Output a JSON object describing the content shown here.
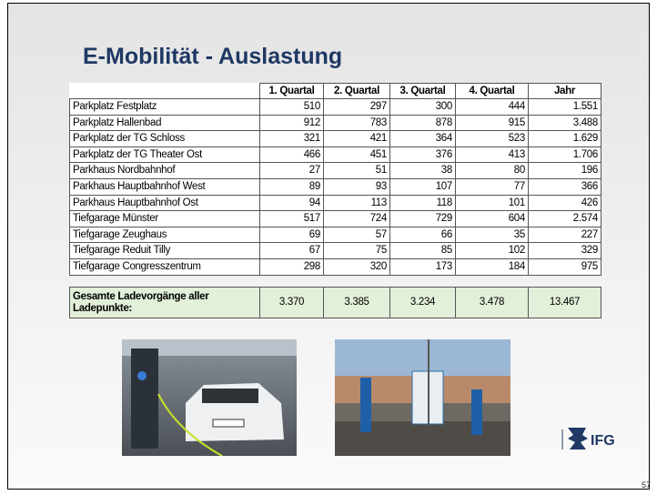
{
  "title": "E-Mobilität - Auslastung",
  "table": {
    "header": [
      "",
      "1. Quartal",
      "2. Quartal",
      "3. Quartal",
      "4. Quartal",
      "Jahr"
    ],
    "rows": [
      [
        "Parkplatz Festplatz",
        "510",
        "297",
        "300",
        "444",
        "1.551"
      ],
      [
        "Parkplatz Hallenbad",
        "912",
        "783",
        "878",
        "915",
        "3.488"
      ],
      [
        "Parkplatz der TG Schloss",
        "321",
        "421",
        "364",
        "523",
        "1.629"
      ],
      [
        "Parkplatz der TG Theater Ost",
        "466",
        "451",
        "376",
        "413",
        "1.706"
      ],
      [
        "Parkhaus Nordbahnhof",
        "27",
        "51",
        "38",
        "80",
        "196"
      ],
      [
        "Parkhaus Hauptbahnhof West",
        "89",
        "93",
        "107",
        "77",
        "366"
      ],
      [
        "Parkhaus Hauptbahnhof Ost",
        "94",
        "113",
        "118",
        "101",
        "426"
      ],
      [
        "Tiefgarage Münster",
        "517",
        "724",
        "729",
        "604",
        "2.574"
      ],
      [
        "Tiefgarage Zeughaus",
        "69",
        "57",
        "66",
        "35",
        "227"
      ],
      [
        "Tiefgarage Reduit Tilly",
        "67",
        "75",
        "85",
        "102",
        "329"
      ],
      [
        "Tiefgarage Congresszentrum",
        "298",
        "320",
        "173",
        "184",
        "975"
      ]
    ],
    "total": [
      "Gesamte Ladevorgänge aller Ladepunkte:",
      "3.370",
      "3.385",
      "3.234",
      "3.478",
      "13.467"
    ]
  },
  "logo": "IFG",
  "page_number": "57"
}
